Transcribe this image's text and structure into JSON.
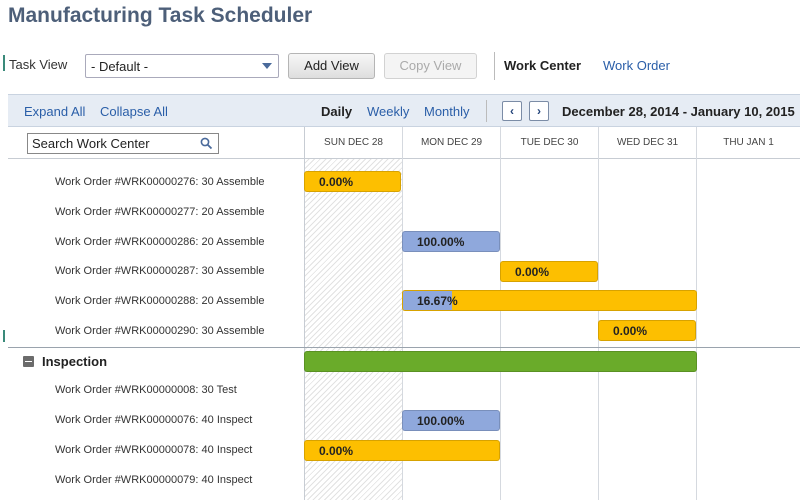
{
  "page": {
    "title": "Manufacturing Task Scheduler"
  },
  "controls": {
    "task_view_label": "Task View",
    "task_view_value": "- Default -",
    "add_view": "Add View",
    "copy_view": "Copy View",
    "work_center": "Work Center",
    "work_order": "Work Order"
  },
  "toolbar": {
    "expand_all": "Expand All",
    "collapse_all": "Collapse All",
    "daily": "Daily",
    "weekly": "Weekly",
    "monthly": "Monthly",
    "prev": "‹",
    "next": "›",
    "date_range": "December 28, 2014 - January 10, 2015"
  },
  "search": {
    "value": "Search Work Center"
  },
  "days": [
    "SUN DEC 28",
    "MON DEC 29",
    "TUE DEC 30",
    "WED DEC 31",
    "THU JAN 1"
  ],
  "colors": {
    "yellow": "#fdbf00",
    "blue": "#8fa8dc",
    "green": "#6aab2a"
  },
  "rows_assemble": [
    {
      "label": "Work Order #WRK00000276: 30 Assemble",
      "pct": "0.00%"
    },
    {
      "label": "Work Order #WRK00000277: 20 Assemble",
      "pct": ""
    },
    {
      "label": "Work Order #WRK00000286: 20 Assemble",
      "pct": "100.00%"
    },
    {
      "label": "Work Order #WRK00000287: 30 Assemble",
      "pct": "0.00%"
    },
    {
      "label": "Work Order #WRK00000288: 20 Assemble",
      "pct": "16.67%"
    },
    {
      "label": "Work Order #WRK00000290: 30 Assemble",
      "pct": "0.00%"
    }
  ],
  "group_inspection": {
    "label": "Inspection"
  },
  "rows_inspection": [
    {
      "label": "Work Order #WRK00000008: 30 Test",
      "pct": ""
    },
    {
      "label": "Work Order #WRK00000076: 40 Inspect",
      "pct": "100.00%"
    },
    {
      "label": "Work Order #WRK00000078: 40 Inspect",
      "pct": "0.00%"
    },
    {
      "label": "Work Order #WRK00000079: 40 Inspect",
      "pct": ""
    }
  ]
}
